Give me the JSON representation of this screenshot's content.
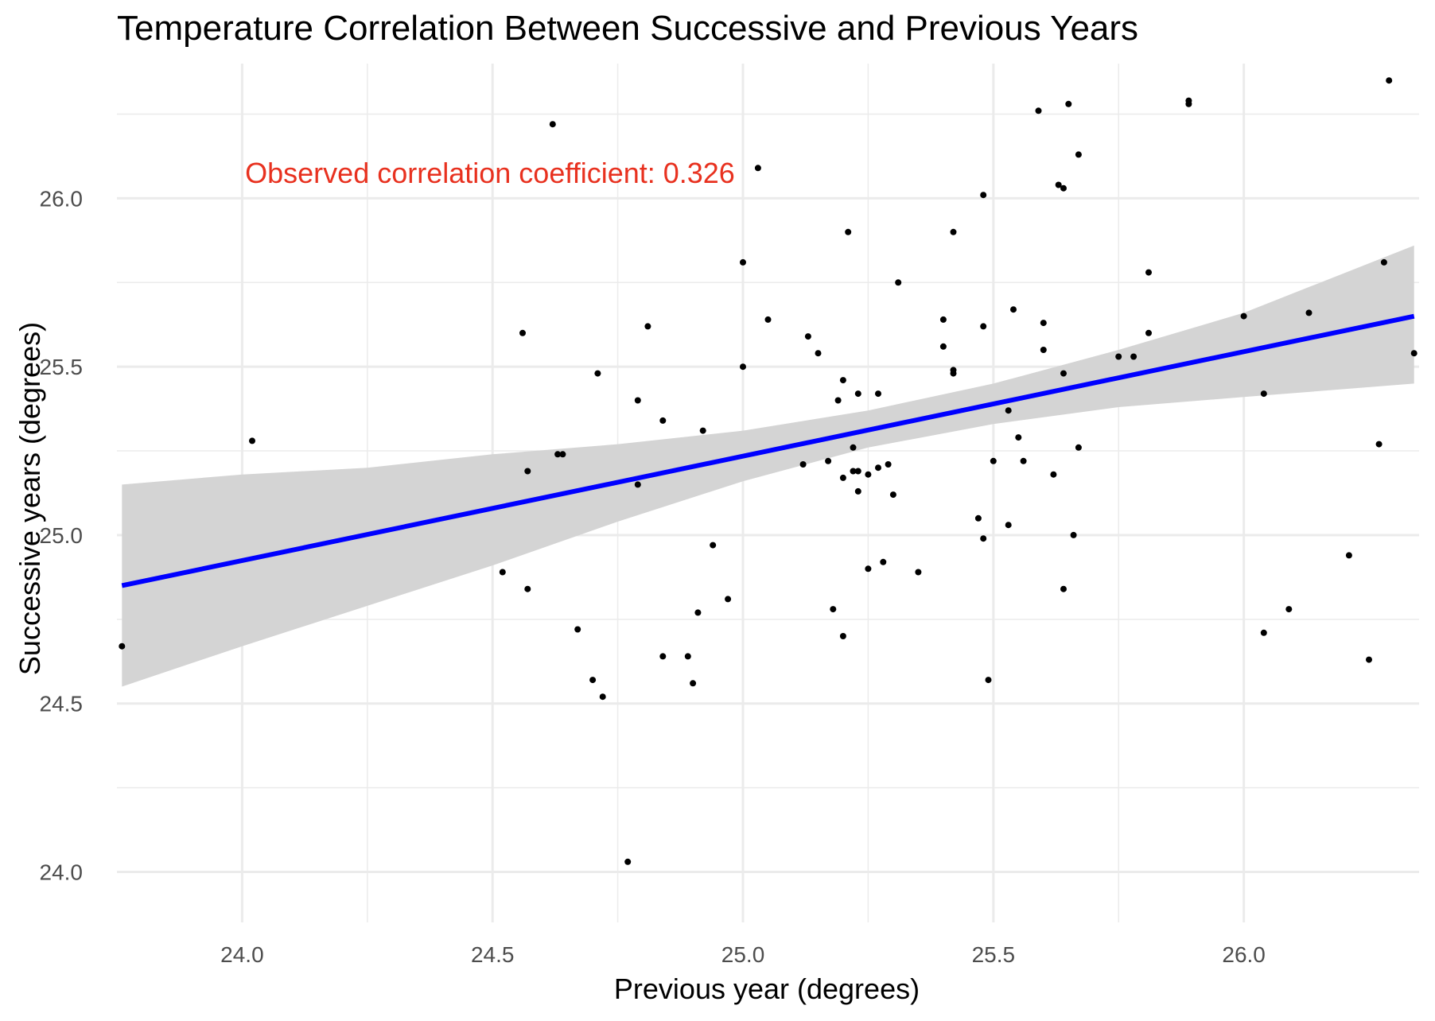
{
  "chart_data": {
    "type": "scatter",
    "title": "Temperature Correlation Between Successive and Previous Years",
    "xlabel": "Previous year (degrees)",
    "ylabel": "Successive years (degrees)",
    "xlim": [
      23.75,
      26.35
    ],
    "ylim": [
      23.85,
      26.4
    ],
    "x_ticks": [
      24.0,
      24.5,
      25.0,
      25.5,
      26.0
    ],
    "x_tick_labels": [
      "24.0",
      "24.5",
      "25.0",
      "25.5",
      "26.0"
    ],
    "y_ticks": [
      24.0,
      24.5,
      25.0,
      25.5,
      26.0
    ],
    "y_tick_labels": [
      "24.0",
      "24.5",
      "25.0",
      "25.5",
      "26.0"
    ],
    "grid": true,
    "annotation": {
      "text": "Observed correlation coefficient: 0.326",
      "x": 24.45,
      "y": 26.15
    },
    "points": [
      [
        23.76,
        24.67
      ],
      [
        24.02,
        25.28
      ],
      [
        24.52,
        24.89
      ],
      [
        24.56,
        25.6
      ],
      [
        24.57,
        25.19
      ],
      [
        24.57,
        24.84
      ],
      [
        24.62,
        26.22
      ],
      [
        24.63,
        25.24
      ],
      [
        24.64,
        25.24
      ],
      [
        24.67,
        24.72
      ],
      [
        24.7,
        24.57
      ],
      [
        24.71,
        25.48
      ],
      [
        24.72,
        24.52
      ],
      [
        24.77,
        24.03
      ],
      [
        24.79,
        25.4
      ],
      [
        24.79,
        25.15
      ],
      [
        24.81,
        25.62
      ],
      [
        24.84,
        25.34
      ],
      [
        24.84,
        24.64
      ],
      [
        24.89,
        24.64
      ],
      [
        24.9,
        24.56
      ],
      [
        24.91,
        24.77
      ],
      [
        24.92,
        25.31
      ],
      [
        24.94,
        24.97
      ],
      [
        24.97,
        24.81
      ],
      [
        25.0,
        25.5
      ],
      [
        25.0,
        25.81
      ],
      [
        25.03,
        26.09
      ],
      [
        25.05,
        25.64
      ],
      [
        25.12,
        25.21
      ],
      [
        25.13,
        25.59
      ],
      [
        25.15,
        25.54
      ],
      [
        25.17,
        25.22
      ],
      [
        25.18,
        24.78
      ],
      [
        25.19,
        25.4
      ],
      [
        25.2,
        25.46
      ],
      [
        25.2,
        25.17
      ],
      [
        25.2,
        24.7
      ],
      [
        25.21,
        25.9
      ],
      [
        25.22,
        25.26
      ],
      [
        25.22,
        25.19
      ],
      [
        25.23,
        25.19
      ],
      [
        25.23,
        25.42
      ],
      [
        25.23,
        25.13
      ],
      [
        25.25,
        25.18
      ],
      [
        25.25,
        24.9
      ],
      [
        25.27,
        25.2
      ],
      [
        25.27,
        25.42
      ],
      [
        25.28,
        24.92
      ],
      [
        25.29,
        25.21
      ],
      [
        25.3,
        25.12
      ],
      [
        25.31,
        25.75
      ],
      [
        25.35,
        24.89
      ],
      [
        25.4,
        25.64
      ],
      [
        25.4,
        25.56
      ],
      [
        25.42,
        25.49
      ],
      [
        25.42,
        25.48
      ],
      [
        25.42,
        25.9
      ],
      [
        25.47,
        25.05
      ],
      [
        25.48,
        25.62
      ],
      [
        25.48,
        24.99
      ],
      [
        25.48,
        26.01
      ],
      [
        25.49,
        24.57
      ],
      [
        25.5,
        25.22
      ],
      [
        25.53,
        25.37
      ],
      [
        25.53,
        25.03
      ],
      [
        25.54,
        25.67
      ],
      [
        25.55,
        25.29
      ],
      [
        25.56,
        25.22
      ],
      [
        25.59,
        26.26
      ],
      [
        25.6,
        25.63
      ],
      [
        25.6,
        25.55
      ],
      [
        25.62,
        25.18
      ],
      [
        25.63,
        26.04
      ],
      [
        25.64,
        25.48
      ],
      [
        25.64,
        26.03
      ],
      [
        25.64,
        24.84
      ],
      [
        25.65,
        26.28
      ],
      [
        25.66,
        25.0
      ],
      [
        25.67,
        25.26
      ],
      [
        25.67,
        26.13
      ],
      [
        25.75,
        25.53
      ],
      [
        25.78,
        25.53
      ],
      [
        25.81,
        25.6
      ],
      [
        25.81,
        25.78
      ],
      [
        25.89,
        26.29
      ],
      [
        25.89,
        26.28
      ],
      [
        26.0,
        25.65
      ],
      [
        26.04,
        24.71
      ],
      [
        26.04,
        25.42
      ],
      [
        26.09,
        24.78
      ],
      [
        26.13,
        25.66
      ],
      [
        26.21,
        24.94
      ],
      [
        26.25,
        24.63
      ],
      [
        26.27,
        25.27
      ],
      [
        26.28,
        25.81
      ],
      [
        26.29,
        26.35
      ],
      [
        26.34,
        25.54
      ]
    ],
    "regression": {
      "x": [
        23.76,
        26.34
      ],
      "y": [
        24.85,
        25.65
      ]
    },
    "confidence_band": {
      "x": [
        23.76,
        24.0,
        24.25,
        24.5,
        24.75,
        25.0,
        25.25,
        25.5,
        25.75,
        26.0,
        26.34
      ],
      "lower": [
        24.55,
        24.67,
        24.79,
        24.91,
        25.04,
        25.16,
        25.26,
        25.33,
        25.38,
        25.41,
        25.45
      ],
      "upper": [
        25.15,
        25.18,
        25.2,
        25.24,
        25.27,
        25.31,
        25.37,
        25.45,
        25.55,
        25.66,
        25.86
      ]
    },
    "colors": {
      "points": "#000000",
      "line": "#0000ff",
      "band": "#d4d4d4",
      "grid": "#ebebeb",
      "annotation": "#e8311f"
    }
  }
}
